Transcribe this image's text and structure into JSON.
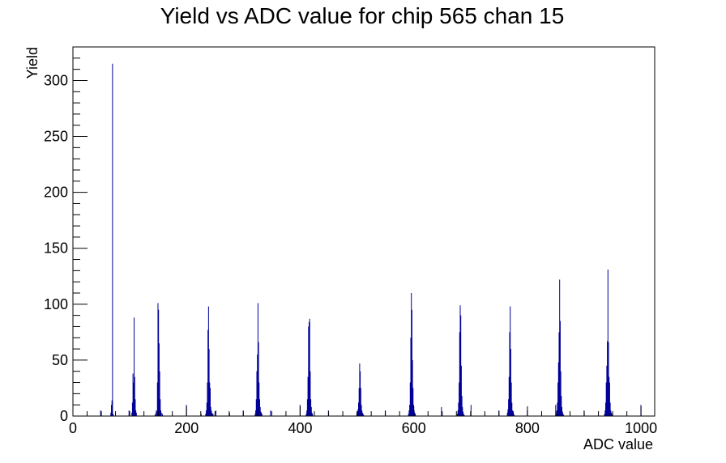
{
  "chart_data": {
    "type": "bar",
    "title": "Yield vs ADC value for chip 565 chan 15",
    "xlabel": "ADC value",
    "ylabel": "Yield",
    "xlim": [
      0,
      1024
    ],
    "ylim": [
      0,
      330
    ],
    "x_ticks": [
      0,
      200,
      400,
      600,
      800,
      1000
    ],
    "y_ticks": [
      0,
      50,
      100,
      150,
      200,
      250,
      300
    ],
    "grid": false,
    "legend": "none",
    "bar_color": "#000099",
    "x": [
      48,
      66,
      67,
      68,
      69,
      70,
      98,
      103,
      104,
      105,
      106,
      107,
      108,
      109,
      110,
      111,
      144,
      146,
      147,
      148,
      149,
      150,
      151,
      152,
      153,
      154,
      155,
      157,
      199,
      225,
      233,
      234,
      235,
      236,
      237,
      238,
      239,
      240,
      241,
      242,
      243,
      244,
      245,
      246,
      251,
      275,
      299,
      320,
      321,
      322,
      323,
      324,
      325,
      326,
      327,
      328,
      329,
      330,
      331,
      332,
      347,
      399,
      410,
      411,
      412,
      413,
      414,
      415,
      416,
      417,
      418,
      419,
      420,
      421,
      449,
      499,
      500,
      501,
      502,
      503,
      504,
      505,
      506,
      507,
      508,
      509,
      510,
      511,
      549,
      590,
      591,
      592,
      593,
      594,
      595,
      596,
      597,
      598,
      599,
      600,
      601,
      602,
      648,
      676,
      677,
      678,
      679,
      680,
      681,
      682,
      683,
      684,
      685,
      686,
      687,
      688,
      700,
      749,
      764,
      765,
      766,
      767,
      768,
      769,
      770,
      771,
      772,
      773,
      774,
      775,
      776,
      799,
      849,
      850,
      851,
      852,
      853,
      854,
      855,
      856,
      857,
      858,
      859,
      860,
      861,
      862,
      863,
      899,
      935,
      936,
      937,
      938,
      939,
      940,
      941,
      942,
      943,
      944,
      945,
      946,
      947,
      948,
      949,
      999
    ],
    "values": [
      5,
      3,
      10,
      14,
      315,
      2,
      5,
      3,
      12,
      38,
      30,
      88,
      35,
      15,
      5,
      3,
      2,
      5,
      4,
      30,
      101,
      95,
      65,
      40,
      15,
      5,
      3,
      2,
      10,
      2,
      2,
      5,
      12,
      30,
      77,
      98,
      60,
      30,
      25,
      8,
      5,
      3,
      2,
      2,
      5,
      3,
      5,
      2,
      5,
      15,
      40,
      55,
      101,
      66,
      30,
      15,
      8,
      4,
      3,
      2,
      5,
      10,
      2,
      5,
      15,
      35,
      80,
      84,
      87,
      40,
      15,
      8,
      3,
      2,
      5,
      2,
      4,
      6,
      12,
      25,
      47,
      40,
      25,
      10,
      5,
      3,
      2,
      1,
      5,
      2,
      5,
      10,
      30,
      70,
      110,
      95,
      50,
      25,
      10,
      5,
      3,
      2,
      8,
      2,
      5,
      12,
      30,
      75,
      99,
      90,
      45,
      18,
      8,
      4,
      2,
      1,
      10,
      5,
      3,
      6,
      15,
      35,
      75,
      98,
      60,
      30,
      12,
      5,
      3,
      2,
      1,
      5,
      10,
      2,
      5,
      12,
      30,
      48,
      75,
      122,
      85,
      40,
      18,
      8,
      4,
      2,
      1,
      5,
      2,
      5,
      12,
      30,
      45,
      67,
      131,
      66,
      35,
      30,
      12,
      5,
      3,
      2,
      1,
      10
    ]
  }
}
